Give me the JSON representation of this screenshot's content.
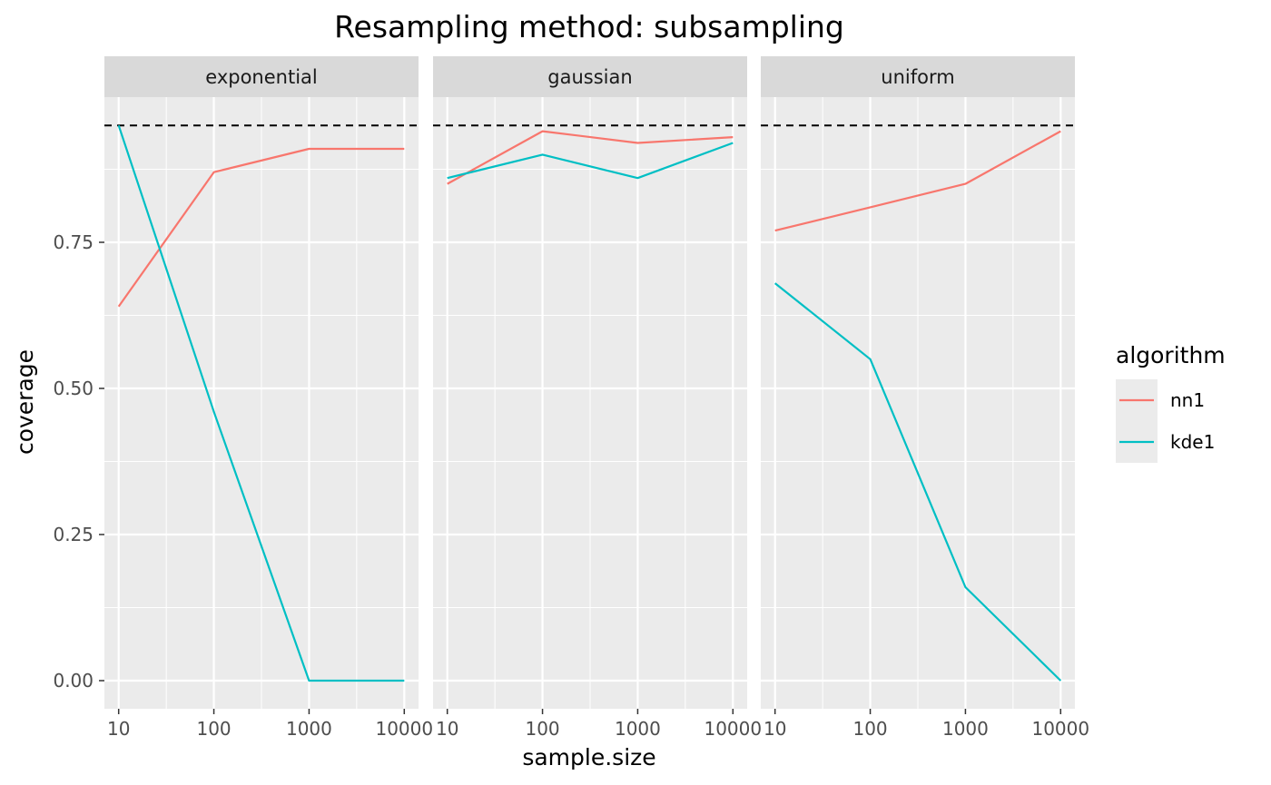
{
  "chart_data": {
    "type": "line",
    "title": "Resampling method: subsampling",
    "xlabel": "sample.size",
    "ylabel": "coverage",
    "x_scale": "log10",
    "x_ticks": [
      10,
      100,
      1000,
      10000
    ],
    "x_tick_labels": [
      "10",
      "100",
      "1000",
      "10000"
    ],
    "ylim": [
      -0.05,
      0.98
    ],
    "y_ticks": [
      0,
      0.25,
      0.5,
      0.75
    ],
    "y_tick_labels": [
      "0.00",
      "0.25",
      "0.50",
      "0.75"
    ],
    "reference_line": {
      "y": 0.95,
      "style": "dashed",
      "color": "#000000"
    },
    "grid": true,
    "legend": {
      "title": "algorithm",
      "placement": "right",
      "entries": [
        {
          "label": "nn1",
          "color": "#F8766D"
        },
        {
          "label": "kde1",
          "color": "#00BFC4"
        }
      ]
    },
    "facets": [
      {
        "label": "exponential",
        "series": [
          {
            "name": "nn1",
            "color": "#F8766D",
            "x": [
              10,
              100,
              1000,
              10000
            ],
            "y": [
              0.64,
              0.87,
              0.91,
              0.91
            ]
          },
          {
            "name": "kde1",
            "color": "#00BFC4",
            "x": [
              10,
              100,
              1000,
              10000
            ],
            "y": [
              0.95,
              0.46,
              0.0,
              0.0
            ]
          }
        ]
      },
      {
        "label": "gaussian",
        "series": [
          {
            "name": "nn1",
            "color": "#F8766D",
            "x": [
              10,
              100,
              1000,
              10000
            ],
            "y": [
              0.85,
              0.94,
              0.92,
              0.93
            ]
          },
          {
            "name": "kde1",
            "color": "#00BFC4",
            "x": [
              10,
              100,
              1000,
              10000
            ],
            "y": [
              0.86,
              0.9,
              0.86,
              0.92
            ]
          }
        ]
      },
      {
        "label": "uniform",
        "series": [
          {
            "name": "nn1",
            "color": "#F8766D",
            "x": [
              10,
              100,
              1000,
              10000
            ],
            "y": [
              0.77,
              0.81,
              0.85,
              0.94
            ]
          },
          {
            "name": "kde1",
            "color": "#00BFC4",
            "x": [
              10,
              100,
              1000,
              10000
            ],
            "y": [
              0.68,
              0.55,
              0.16,
              0.0
            ]
          }
        ]
      }
    ]
  }
}
